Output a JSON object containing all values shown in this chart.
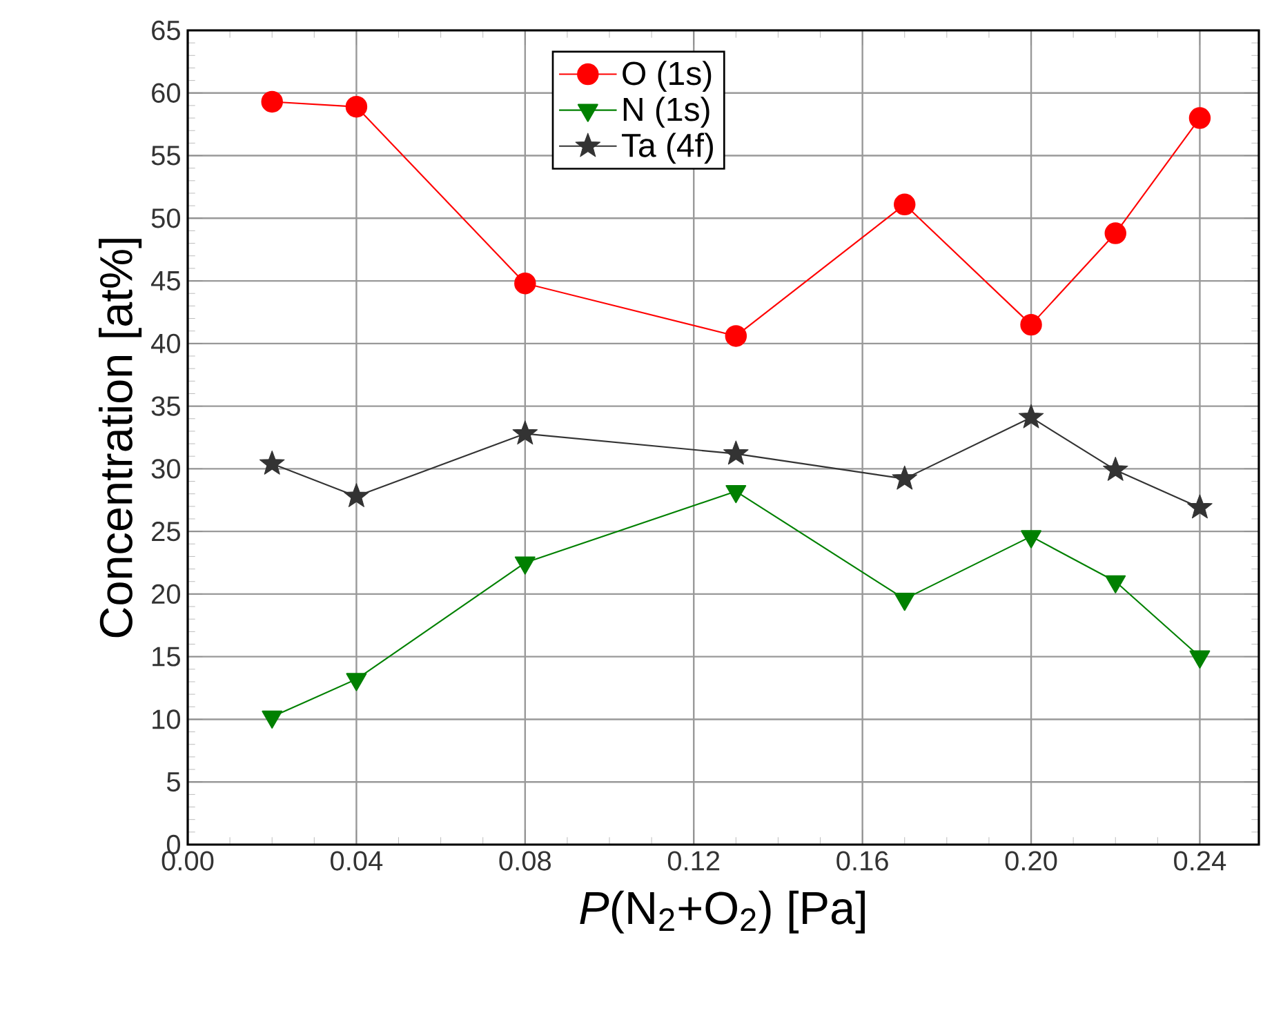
{
  "chart_data": {
    "type": "line",
    "xlabel": "*P*(N$_{2}$+O$_{2}$) [Pa]",
    "ylabel": "Concentration [at%]",
    "x": [
      0.02,
      0.04,
      0.08,
      0.13,
      0.17,
      0.2,
      0.22,
      0.24
    ],
    "series": [
      {
        "name": "O (1s)",
        "color": "#ff0000",
        "marker": "circle",
        "values": [
          59.3,
          58.9,
          44.8,
          40.6,
          51.1,
          41.5,
          48.8,
          58.0
        ]
      },
      {
        "name": "N (1s)",
        "color": "#008000",
        "marker": "triangle",
        "values": [
          10.2,
          13.2,
          22.5,
          28.2,
          19.6,
          24.6,
          21.0,
          15.0
        ]
      },
      {
        "name": "Ta (4f)",
        "color": "#333333",
        "marker": "star",
        "values": [
          30.4,
          27.8,
          32.8,
          31.2,
          29.2,
          34.1,
          29.9,
          26.9
        ]
      }
    ],
    "xlim": [
      0,
      0.254
    ],
    "ylim": [
      0,
      65
    ],
    "xticks": [
      {
        "value": 0,
        "label": "0.00"
      },
      {
        "value": 0.04,
        "label": "0.04"
      },
      {
        "value": 0.08,
        "label": "0.08"
      },
      {
        "value": 0.12,
        "label": "0.12"
      },
      {
        "value": 0.16,
        "label": "0.16"
      },
      {
        "value": 0.2,
        "label": "0.20"
      },
      {
        "value": 0.24,
        "label": "0.24"
      }
    ],
    "yticks": [
      0,
      5,
      10,
      15,
      20,
      25,
      30,
      35,
      40,
      45,
      50,
      55,
      60,
      65
    ],
    "grid": true,
    "legend": "top",
    "line_style": "solid"
  }
}
